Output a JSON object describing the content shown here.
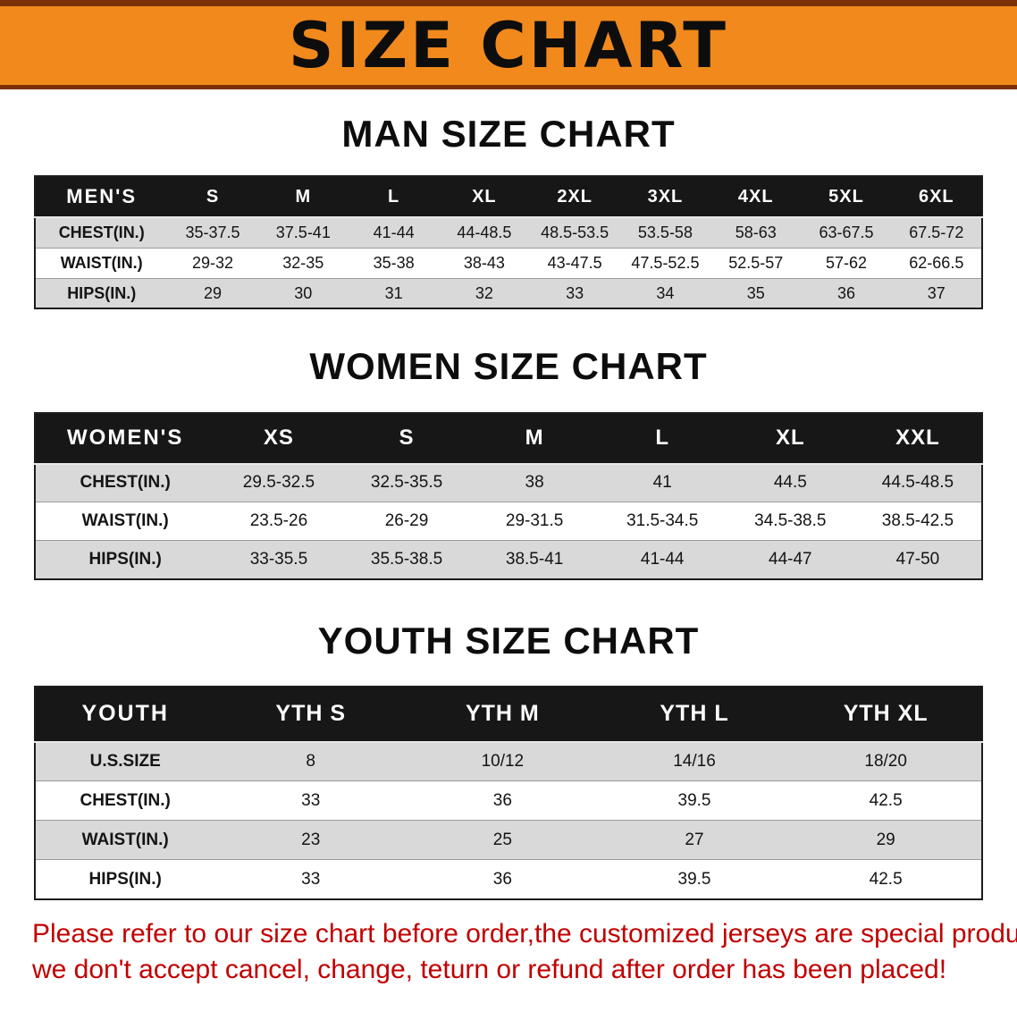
{
  "banner": {
    "title": "SIZE CHART"
  },
  "men": {
    "heading": "MAN SIZE CHART",
    "table": {
      "title": "MEN'S",
      "sizes": [
        "S",
        "M",
        "L",
        "XL",
        "2XL",
        "3XL",
        "4XL",
        "5XL",
        "6XL"
      ],
      "rows": [
        {
          "label": "CHEST(IN.)",
          "values": [
            "35-37.5",
            "37.5-41",
            "41-44",
            "44-48.5",
            "48.5-53.5",
            "53.5-58",
            "58-63",
            "63-67.5",
            "67.5-72"
          ]
        },
        {
          "label": "WAIST(IN.)",
          "values": [
            "29-32",
            "32-35",
            "35-38",
            "38-43",
            "43-47.5",
            "47.5-52.5",
            "52.5-57",
            "57-62",
            "62-66.5"
          ]
        },
        {
          "label": "HIPS(IN.)",
          "values": [
            "29",
            "30",
            "31",
            "32",
            "33",
            "34",
            "35",
            "36",
            "37"
          ]
        }
      ]
    }
  },
  "women": {
    "heading": "WOMEN SIZE CHART",
    "table": {
      "title": "WOMEN'S",
      "sizes": [
        "XS",
        "S",
        "M",
        "L",
        "XL",
        "XXL"
      ],
      "rows": [
        {
          "label": "CHEST(IN.)",
          "values": [
            "29.5-32.5",
            "32.5-35.5",
            "38",
            "41",
            "44.5",
            "44.5-48.5"
          ]
        },
        {
          "label": "WAIST(IN.)",
          "values": [
            "23.5-26",
            "26-29",
            "29-31.5",
            "31.5-34.5",
            "34.5-38.5",
            "38.5-42.5"
          ]
        },
        {
          "label": "HIPS(IN.)",
          "values": [
            "33-35.5",
            "35.5-38.5",
            "38.5-41",
            "41-44",
            "44-47",
            "47-50"
          ]
        }
      ]
    }
  },
  "youth": {
    "heading": "YOUTH SIZE CHART",
    "table": {
      "title": "YOUTH",
      "sizes": [
        "YTH S",
        "YTH M",
        "YTH L",
        "YTH XL"
      ],
      "rows": [
        {
          "label": "U.S.SIZE",
          "values": [
            "8",
            "10/12",
            "14/16",
            "18/20"
          ]
        },
        {
          "label": "CHEST(IN.)",
          "values": [
            "33",
            "36",
            "39.5",
            "42.5"
          ]
        },
        {
          "label": "WAIST(IN.)",
          "values": [
            "23",
            "25",
            "27",
            "29"
          ]
        },
        {
          "label": "HIPS(IN.)",
          "values": [
            "33",
            "36",
            "39.5",
            "42.5"
          ]
        }
      ]
    }
  },
  "disclaimer": {
    "lines": [
      "Please refer to our size chart before order,the customized jerseys are special products,",
      "we don't accept cancel, change, teturn or refund after order has been placed!"
    ]
  },
  "colors": {
    "banner_bg": "#f1891c",
    "banner_border": "#7c3008",
    "header_bg": "#171717",
    "row_stripe": "#d9d9d9",
    "disclaimer_color": "#c10000"
  }
}
